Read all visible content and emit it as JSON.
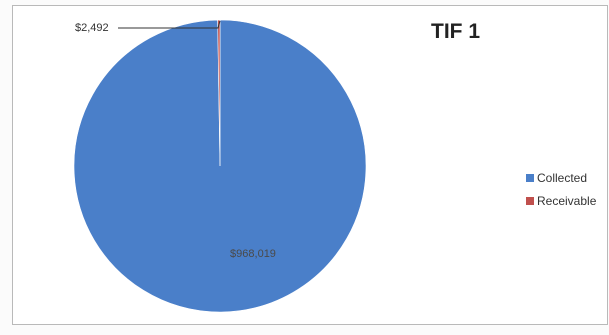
{
  "chart_data": {
    "type": "pie",
    "title": "TIF 1",
    "categories": [
      "Collected",
      "Receivable"
    ],
    "values": [
      968019,
      2492
    ],
    "data_labels": [
      "$968,019",
      "$2,492"
    ],
    "colors": [
      "#4a7fc9",
      "#c0504d"
    ],
    "legend_position": "right"
  }
}
